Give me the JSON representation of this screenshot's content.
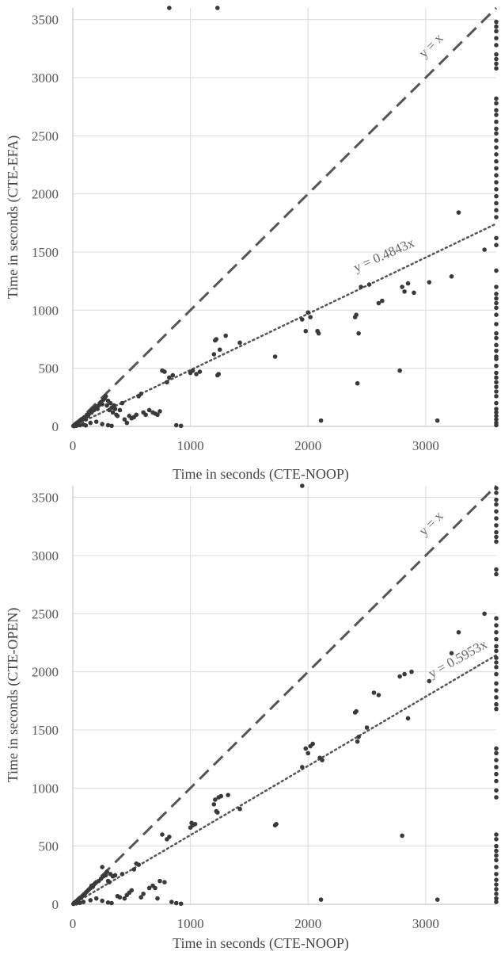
{
  "chart_data": [
    {
      "type": "scatter",
      "xlabel": "Time in seconds (CTE-NOOP)",
      "ylabel": "Time in seconds (CTE-EFA)",
      "xlim": [
        0,
        3600
      ],
      "ylim": [
        0,
        3600
      ],
      "xticks": [
        0,
        1000,
        2000,
        3000
      ],
      "yticks": [
        0,
        500,
        1000,
        1500,
        2000,
        2500,
        3000,
        3500
      ],
      "grid": true,
      "reference_line": {
        "label": "y = x",
        "slope": 1,
        "style": "dashed"
      },
      "trend_line": {
        "label": "y = 0.4843x",
        "slope": 0.4843,
        "style": "dotted"
      },
      "points": [
        [
          5,
          3
        ],
        [
          8,
          6
        ],
        [
          12,
          10
        ],
        [
          15,
          12
        ],
        [
          20,
          18
        ],
        [
          25,
          20
        ],
        [
          30,
          25
        ],
        [
          35,
          30
        ],
        [
          40,
          28
        ],
        [
          45,
          35
        ],
        [
          50,
          40
        ],
        [
          55,
          45
        ],
        [
          60,
          50
        ],
        [
          70,
          55
        ],
        [
          80,
          60
        ],
        [
          90,
          70
        ],
        [
          100,
          80
        ],
        [
          110,
          60
        ],
        [
          120,
          100
        ],
        [
          130,
          90
        ],
        [
          140,
          110
        ],
        [
          150,
          130
        ],
        [
          160,
          120
        ],
        [
          170,
          150
        ],
        [
          180,
          140
        ],
        [
          190,
          160
        ],
        [
          200,
          170
        ],
        [
          210,
          150
        ],
        [
          220,
          180
        ],
        [
          230,
          200
        ],
        [
          240,
          210
        ],
        [
          250,
          190
        ],
        [
          260,
          230
        ],
        [
          270,
          240
        ],
        [
          280,
          260
        ],
        [
          290,
          180
        ],
        [
          300,
          220
        ],
        [
          310,
          140
        ],
        [
          320,
          200
        ],
        [
          330,
          160
        ],
        [
          340,
          120
        ],
        [
          350,
          180
        ],
        [
          360,
          150
        ],
        [
          370,
          100
        ],
        [
          380,
          90
        ],
        [
          400,
          140
        ],
        [
          420,
          200
        ],
        [
          440,
          60
        ],
        [
          460,
          30
        ],
        [
          480,
          90
        ],
        [
          500,
          70
        ],
        [
          520,
          80
        ],
        [
          540,
          100
        ],
        [
          560,
          260
        ],
        [
          580,
          280
        ],
        [
          600,
          120
        ],
        [
          620,
          100
        ],
        [
          650,
          140
        ],
        [
          680,
          120
        ],
        [
          700,
          110
        ],
        [
          720,
          100
        ],
        [
          740,
          130
        ],
        [
          760,
          480
        ],
        [
          780,
          470
        ],
        [
          800,
          380
        ],
        [
          820,
          420
        ],
        [
          850,
          440
        ],
        [
          880,
          10
        ],
        [
          920,
          5
        ],
        [
          1000,
          460
        ],
        [
          1020,
          480
        ],
        [
          1050,
          450
        ],
        [
          1080,
          470
        ],
        [
          1200,
          620
        ],
        [
          1210,
          740
        ],
        [
          1220,
          750
        ],
        [
          1230,
          440
        ],
        [
          1240,
          450
        ],
        [
          1250,
          660
        ],
        [
          1300,
          780
        ],
        [
          1420,
          720
        ],
        [
          1720,
          600
        ],
        [
          1950,
          920
        ],
        [
          1980,
          820
        ],
        [
          2000,
          980
        ],
        [
          2020,
          940
        ],
        [
          2080,
          820
        ],
        [
          2090,
          800
        ],
        [
          2110,
          50
        ],
        [
          2400,
          940
        ],
        [
          2410,
          960
        ],
        [
          2420,
          370
        ],
        [
          2430,
          800
        ],
        [
          2450,
          1200
        ],
        [
          2520,
          1220
        ],
        [
          2600,
          1060
        ],
        [
          2630,
          1080
        ],
        [
          2780,
          480
        ],
        [
          2800,
          1200
        ],
        [
          2820,
          1160
        ],
        [
          2850,
          1230
        ],
        [
          2900,
          1150
        ],
        [
          3030,
          1240
        ],
        [
          3100,
          50
        ],
        [
          3220,
          1290
        ],
        [
          3280,
          1840
        ],
        [
          3500,
          1520
        ],
        [
          820,
          3600
        ],
        [
          1230,
          3600
        ],
        [
          30,
          5
        ],
        [
          10,
          2
        ],
        [
          60,
          10
        ],
        [
          90,
          15
        ],
        [
          150,
          30
        ],
        [
          300,
          10
        ],
        [
          330,
          5
        ],
        [
          200,
          40
        ],
        [
          250,
          20
        ],
        [
          110,
          8
        ]
      ],
      "timeout_y": [
        10,
        30,
        60,
        90,
        120,
        150,
        200,
        260,
        300,
        340,
        380,
        420,
        460,
        520,
        580,
        600,
        650,
        700,
        760,
        800,
        880,
        960,
        1020,
        1060,
        1100,
        1140,
        1200,
        1340,
        1560,
        1620,
        1800,
        1860,
        1920,
        1980,
        2040,
        2100,
        2160,
        2220,
        2280,
        2340,
        2400,
        2460,
        2520,
        2560,
        2620,
        2680,
        2720,
        2780,
        2820,
        3080,
        3120,
        3160,
        3200,
        3280,
        3340,
        3400,
        3440,
        3480
      ]
    },
    {
      "type": "scatter",
      "xlabel": "Time in seconds (CTE-NOOP)",
      "ylabel": "Time in seconds (CTE-OPEN)",
      "xlim": [
        0,
        3600
      ],
      "ylim": [
        0,
        3600
      ],
      "xticks": [
        0,
        1000,
        2000,
        3000
      ],
      "yticks": [
        0,
        500,
        1000,
        1500,
        2000,
        2500,
        3000,
        3500
      ],
      "grid": true,
      "reference_line": {
        "label": "y = x",
        "slope": 1,
        "style": "dashed"
      },
      "trend_line": {
        "label": "y = 0.5953x",
        "slope": 0.5953,
        "style": "dotted"
      },
      "points": [
        [
          5,
          3
        ],
        [
          8,
          6
        ],
        [
          12,
          10
        ],
        [
          15,
          14
        ],
        [
          20,
          18
        ],
        [
          25,
          22
        ],
        [
          30,
          26
        ],
        [
          35,
          30
        ],
        [
          40,
          35
        ],
        [
          45,
          40
        ],
        [
          50,
          45
        ],
        [
          60,
          55
        ],
        [
          70,
          60
        ],
        [
          80,
          70
        ],
        [
          90,
          80
        ],
        [
          100,
          90
        ],
        [
          110,
          100
        ],
        [
          120,
          110
        ],
        [
          130,
          120
        ],
        [
          140,
          130
        ],
        [
          150,
          140
        ],
        [
          160,
          160
        ],
        [
          170,
          150
        ],
        [
          180,
          170
        ],
        [
          190,
          180
        ],
        [
          200,
          190
        ],
        [
          220,
          200
        ],
        [
          240,
          220
        ],
        [
          250,
          320
        ],
        [
          260,
          240
        ],
        [
          280,
          250
        ],
        [
          290,
          280
        ],
        [
          300,
          200
        ],
        [
          310,
          190
        ],
        [
          320,
          260
        ],
        [
          340,
          240
        ],
        [
          360,
          250
        ],
        [
          380,
          70
        ],
        [
          400,
          60
        ],
        [
          420,
          260
        ],
        [
          440,
          50
        ],
        [
          460,
          80
        ],
        [
          480,
          100
        ],
        [
          500,
          120
        ],
        [
          520,
          300
        ],
        [
          540,
          350
        ],
        [
          560,
          340
        ],
        [
          580,
          60
        ],
        [
          600,
          90
        ],
        [
          650,
          140
        ],
        [
          680,
          160
        ],
        [
          700,
          140
        ],
        [
          720,
          50
        ],
        [
          740,
          200
        ],
        [
          760,
          600
        ],
        [
          780,
          190
        ],
        [
          800,
          560
        ],
        [
          820,
          580
        ],
        [
          840,
          20
        ],
        [
          880,
          10
        ],
        [
          920,
          5
        ],
        [
          1000,
          660
        ],
        [
          1010,
          700
        ],
        [
          1020,
          680
        ],
        [
          1040,
          690
        ],
        [
          1200,
          860
        ],
        [
          1210,
          900
        ],
        [
          1220,
          800
        ],
        [
          1230,
          790
        ],
        [
          1240,
          920
        ],
        [
          1260,
          930
        ],
        [
          1320,
          940
        ],
        [
          1420,
          820
        ],
        [
          1720,
          680
        ],
        [
          1730,
          690
        ],
        [
          1950,
          1180
        ],
        [
          1980,
          1340
        ],
        [
          2000,
          1300
        ],
        [
          2020,
          1360
        ],
        [
          2040,
          1380
        ],
        [
          2100,
          1260
        ],
        [
          2110,
          40
        ],
        [
          2120,
          1240
        ],
        [
          2400,
          1650
        ],
        [
          2410,
          1660
        ],
        [
          2420,
          1400
        ],
        [
          2430,
          1440
        ],
        [
          2500,
          1520
        ],
        [
          2560,
          1820
        ],
        [
          2600,
          1800
        ],
        [
          2780,
          1960
        ],
        [
          2800,
          590
        ],
        [
          2820,
          1980
        ],
        [
          2850,
          1600
        ],
        [
          2880,
          2000
        ],
        [
          3030,
          1920
        ],
        [
          3100,
          40
        ],
        [
          3220,
          2160
        ],
        [
          3280,
          2340
        ],
        [
          3500,
          2500
        ],
        [
          1950,
          3600
        ],
        [
          30,
          8
        ],
        [
          60,
          12
        ],
        [
          90,
          20
        ],
        [
          150,
          35
        ],
        [
          200,
          50
        ],
        [
          250,
          30
        ],
        [
          300,
          15
        ],
        [
          330,
          10
        ]
      ],
      "timeout_y": [
        20,
        50,
        90,
        130,
        170,
        210,
        260,
        320,
        380,
        420,
        460,
        500,
        560,
        600,
        920,
        980,
        1060,
        1120,
        1180,
        1240,
        1300,
        1340,
        1680,
        1720,
        1780,
        1840,
        1900,
        1980,
        2040,
        2080,
        2120,
        2180,
        2220,
        2280,
        2340,
        2400,
        2460,
        2840,
        2880,
        3120,
        3160,
        3200,
        3260,
        3320,
        3380,
        3440,
        3480,
        3540,
        3580
      ]
    }
  ]
}
